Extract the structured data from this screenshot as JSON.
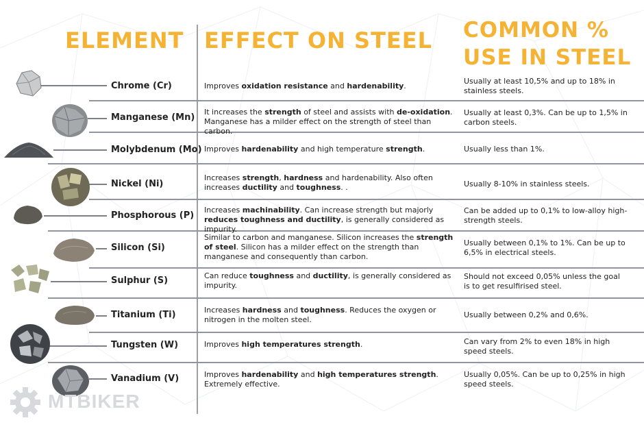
{
  "headers": {
    "element": "ELEMENT",
    "effect": "EFFECT ON STEEL",
    "common_line1": "COMMON %",
    "common_line2": "USE IN STEEL"
  },
  "rows": [
    {
      "name": "Chrome (Cr)",
      "effect": [
        {
          "t": "Improves "
        },
        {
          "t": "oxidation resistance",
          "b": true
        },
        {
          "t": " and "
        },
        {
          "t": "hardenability",
          "b": true
        },
        {
          "t": "."
        }
      ],
      "use": "Usually at least 10,5% and up to 18% in stainless steels."
    },
    {
      "name": "Manganese (Mn)",
      "effect": [
        {
          "t": "It increases the "
        },
        {
          "t": "strength",
          "b": true
        },
        {
          "t": " of steel and assists with "
        },
        {
          "t": "de-oxidation",
          "b": true
        },
        {
          "t": ". Manganese has a milder effect on the strength of steel than carbon."
        }
      ],
      "use": "Usually at least 0,3%. Can be up to 1,5% in carbon steels."
    },
    {
      "name": "Molybdenum (Mo)",
      "effect": [
        {
          "t": "Improves "
        },
        {
          "t": "hardenability",
          "b": true
        },
        {
          "t": " and high temperature "
        },
        {
          "t": "strength",
          "b": true
        },
        {
          "t": "."
        }
      ],
      "use": "Usually less than 1%."
    },
    {
      "name": "Nickel (Ni)",
      "effect": [
        {
          "t": "Increases "
        },
        {
          "t": "strength",
          "b": true
        },
        {
          "t": ", "
        },
        {
          "t": "hardness",
          "b": true
        },
        {
          "t": " and hardenability. Also often increases "
        },
        {
          "t": "ductility",
          "b": true
        },
        {
          "t": " and "
        },
        {
          "t": "toughness",
          "b": true
        },
        {
          "t": ". ."
        }
      ],
      "use": "Usually 8-10% in stainless steels."
    },
    {
      "name": "Phosphorous (P)",
      "effect": [
        {
          "t": "Increases "
        },
        {
          "t": "machinability",
          "b": true
        },
        {
          "t": ". Can increase strength but majorly "
        },
        {
          "t": "reduces toughness and ductility",
          "b": true
        },
        {
          "t": ", is generally considered as impurity."
        }
      ],
      "use": "Can be added up to 0,1% to low-alloy high-strength steels."
    },
    {
      "name": "Silicon (Si)",
      "effect": [
        {
          "t": "Similar to carbon and manganese. Silicon increases the "
        },
        {
          "t": "strength of steel",
          "b": true
        },
        {
          "t": ". Silicon has a milder effect on the strength than manganese and consequently than carbon."
        }
      ],
      "use": "Usually between 0,1% to 1%. Can be up to 6,5% in electrical steels."
    },
    {
      "name": "Sulphur (S)",
      "effect": [
        {
          "t": "Can reduce "
        },
        {
          "t": "toughness",
          "b": true
        },
        {
          "t": " and "
        },
        {
          "t": "ductility",
          "b": true
        },
        {
          "t": ", is generally considered as impurity."
        }
      ],
      "use": "Should not exceed 0,05% unless the goal is to get resulfirised steel."
    },
    {
      "name": "Titanium (Ti)",
      "effect": [
        {
          "t": "Increases "
        },
        {
          "t": "hardness",
          "b": true
        },
        {
          "t": " and "
        },
        {
          "t": "toughness",
          "b": true
        },
        {
          "t": ". Reduces the oxygen or nitrogen in the molten steel."
        }
      ],
      "use": "Usually between 0,2% and 0,6%."
    },
    {
      "name": "Tungsten (W)",
      "effect": [
        {
          "t": "Improves "
        },
        {
          "t": "high temperatures strength",
          "b": true
        },
        {
          "t": "."
        }
      ],
      "use": "Can vary from 2% to even 18% in high speed steels."
    },
    {
      "name": "Vanadium (V)",
      "effect": [
        {
          "t": "Improves "
        },
        {
          "t": "hardenability",
          "b": true
        },
        {
          "t": " and "
        },
        {
          "t": "high temperatures strength",
          "b": true
        },
        {
          "t": ". Extremely effective."
        }
      ],
      "use": "Usually 0,05%. Can be up to 0,25% in high speed steels."
    }
  ],
  "watermark": "MTBIKER",
  "colors": {
    "header": "#f5b335",
    "text": "#222222",
    "lines": "#8f959b"
  }
}
